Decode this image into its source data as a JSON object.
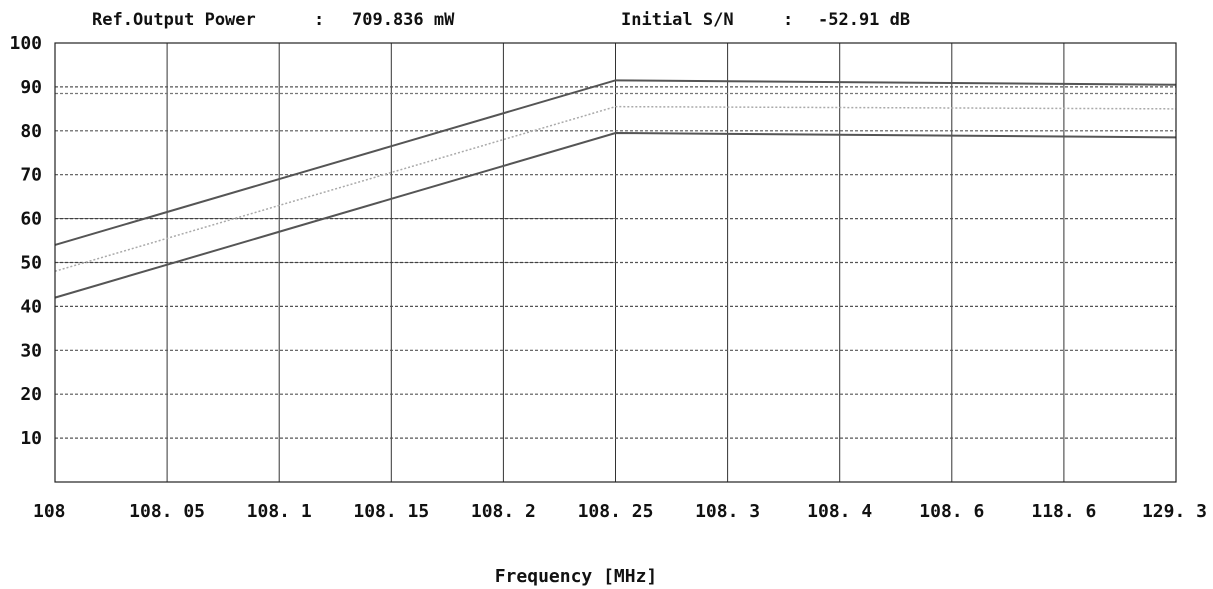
{
  "header": {
    "ref_output_power_label": "Ref.Output Power",
    "ref_output_power_sep": ":",
    "ref_output_power_value": "709.836 mW",
    "initial_sn_label": "Initial S/N",
    "initial_sn_sep": ":",
    "initial_sn_value": "-52.91 dB"
  },
  "chart_data": {
    "type": "line",
    "title": "",
    "xlabel": "Frequency [MHz]",
    "ylabel": "",
    "x": [
      "108",
      "108.05",
      "108.1",
      "108.15",
      "108.2",
      "108.25",
      "108.3",
      "108.4",
      "108.6",
      "118.6",
      "129.3"
    ],
    "x_tick_labels": [
      "108",
      "108. 05",
      "108. 1",
      "108. 15",
      "108. 2",
      "108. 25",
      "108. 3",
      "108. 4",
      "108. 6",
      "118. 6",
      "129. 3"
    ],
    "x_scale": "categorical (evenly spaced)",
    "ylim": [
      0,
      100
    ],
    "y_ticks": [
      100,
      90,
      80,
      70,
      60,
      50,
      40,
      30,
      20,
      10
    ],
    "grid": {
      "vertical": "solid",
      "horizontal": "dotted"
    },
    "series": [
      {
        "values": [
          54,
          61.5,
          69,
          76.5,
          84,
          91.5,
          91.3,
          91.1,
          90.9,
          90.7,
          90.5
        ],
        "color": "#555555",
        "style": "solid"
      },
      {
        "values": [
          48,
          55.5,
          63,
          70.5,
          78,
          85.5,
          85.4,
          85.3,
          85.2,
          85.1,
          85
        ],
        "color": "#aaaaaa",
        "style": "dotted"
      },
      {
        "values": [
          42,
          49.5,
          57,
          64.5,
          72,
          79.5,
          79.3,
          79.1,
          78.9,
          78.7,
          78.5
        ],
        "color": "#555555",
        "style": "solid"
      }
    ],
    "extra_horizontal_lines": [
      {
        "y": 88.5,
        "color": "#777777",
        "style": "dotted"
      },
      {
        "y": 60,
        "color": "#333333",
        "style": "solid",
        "x_extent": "108 to 108.25"
      },
      {
        "y": 50,
        "color": "#333333",
        "style": "solid",
        "x_extent": "108 to 108.25"
      }
    ]
  }
}
